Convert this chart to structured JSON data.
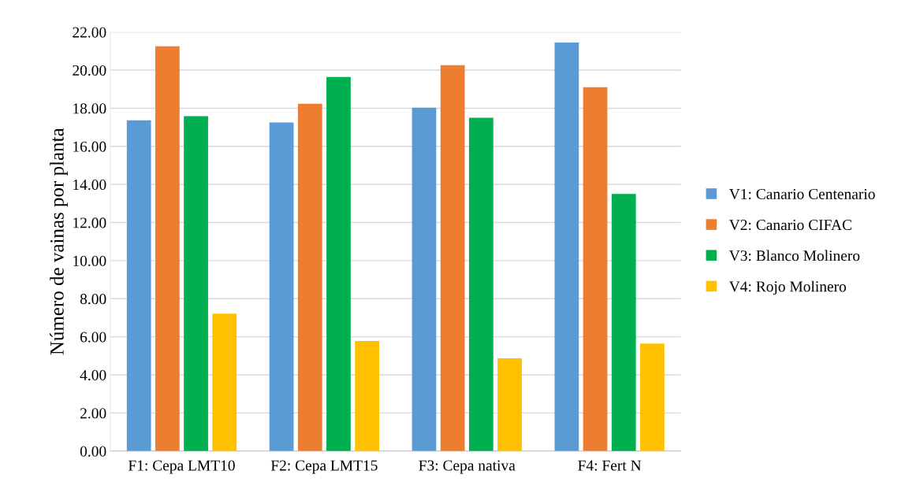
{
  "chart_data": {
    "type": "bar",
    "ylabel": "Número de vainas por planta",
    "categories": [
      "F1: Cepa LMT10",
      "F2: Cepa LMT15",
      "F3: Cepa nativa",
      "F4: Fert N"
    ],
    "series": [
      {
        "name": "V1: Canario Centenario",
        "color": "#5b9bd5",
        "values": [
          17.37,
          17.25,
          18.03,
          21.45
        ]
      },
      {
        "name": "V2: Canario CIFAC",
        "color": "#ed7d31",
        "values": [
          21.25,
          18.24,
          20.26,
          19.1
        ]
      },
      {
        "name": "V3: Blanco Molinero",
        "color": "#00b050",
        "values": [
          17.58,
          19.64,
          17.5,
          13.5
        ]
      },
      {
        "name": "V4: Rojo Molinero",
        "color": "#ffc000",
        "values": [
          7.22,
          5.78,
          4.87,
          5.65
        ]
      }
    ],
    "ylim": [
      0,
      22
    ],
    "yticks": [
      {
        "value": 0,
        "label": "0.00"
      },
      {
        "value": 2,
        "label": "2.00"
      },
      {
        "value": 4,
        "label": "4.00"
      },
      {
        "value": 6,
        "label": "6.00"
      },
      {
        "value": 8,
        "label": "8.00"
      },
      {
        "value": 10,
        "label": "10.00"
      },
      {
        "value": 12,
        "label": "12.00"
      },
      {
        "value": 14,
        "label": "14.00"
      },
      {
        "value": 16,
        "label": "16.00"
      },
      {
        "value": 18,
        "label": "18.00"
      },
      {
        "value": 20,
        "label": "20.00"
      },
      {
        "value": 22,
        "label": "22.00"
      }
    ],
    "grid": "y",
    "legend": "right"
  }
}
